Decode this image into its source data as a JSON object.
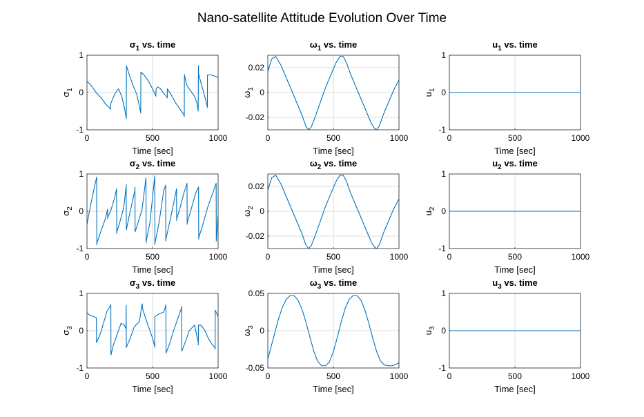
{
  "figure": {
    "suptitle": "Nano-satellite Attitude Evolution Over Time",
    "colors": {
      "line": "#0072BD",
      "grid": "#dcdcdc",
      "axis": "#262626"
    }
  },
  "chart_data": [
    {
      "type": "line",
      "id": "sigma1",
      "title": "σ1 vs. time",
      "title_sym": "σ",
      "title_sub": "1",
      "title_rest": " vs. time",
      "xlabel": "Time [sec]",
      "ylabel_sym": "σ",
      "ylabel_sub": "1",
      "xlim": [
        0,
        1000
      ],
      "ylim": [
        -1,
        1
      ],
      "xticks": [
        0,
        500,
        1000
      ],
      "xticklabels": [
        "0",
        "500",
        "1000"
      ],
      "yticks": [
        -1,
        0,
        1
      ],
      "yticklabels": [
        "-1",
        "0",
        "1"
      ],
      "grid": true,
      "series": [
        {
          "x": [
            0,
            30,
            70,
            110,
            140,
            170,
            180,
            181,
            210,
            240,
            265,
            285,
            298,
            300,
            301,
            320,
            350,
            380,
            408,
            410,
            411,
            440,
            470,
            500,
            520,
            525,
            527,
            540,
            560,
            580,
            600,
            610,
            612,
            613,
            640,
            680,
            720,
            740,
            742,
            743,
            760,
            790,
            820,
            840,
            848,
            850,
            851,
            870,
            890,
            905,
            915,
            918,
            919,
            950,
            980,
            1000
          ],
          "y": [
            0.3,
            0.2,
            0.0,
            -0.15,
            -0.3,
            -0.4,
            -0.45,
            -0.3,
            -0.05,
            0.1,
            -0.1,
            -0.4,
            -0.65,
            -0.7,
            0.72,
            0.5,
            0.2,
            -0.05,
            -0.5,
            -0.55,
            0.55,
            0.45,
            0.3,
            0.1,
            -0.05,
            -0.1,
            0.1,
            0.15,
            0.1,
            0.0,
            -0.08,
            -0.12,
            -0.15,
            0.1,
            -0.05,
            -0.3,
            -0.5,
            -0.6,
            -0.65,
            0.48,
            0.2,
            0.05,
            -0.1,
            -0.3,
            -0.5,
            0.72,
            0.5,
            0.25,
            0.0,
            -0.2,
            -0.35,
            -0.4,
            0.47,
            0.47,
            0.43,
            0.4
          ]
        }
      ]
    },
    {
      "type": "line",
      "id": "omega1",
      "title": "ω1 vs. time",
      "title_sym": "ω",
      "title_sub": "1",
      "title_rest": " vs. time",
      "xlabel": "Time [sec]",
      "ylabel_sym": "ω",
      "ylabel_sub": "1",
      "xlim": [
        0,
        1000
      ],
      "ylim": [
        -0.03,
        0.03
      ],
      "xticks": [
        0,
        500,
        1000
      ],
      "xticklabels": [
        "0",
        "500",
        "1000"
      ],
      "yticks": [
        -0.02,
        0,
        0.02
      ],
      "yticklabels": [
        "-0.02",
        "0",
        "0.02"
      ],
      "grid": true,
      "series": [
        {
          "x": [
            0,
            30,
            60,
            100,
            140,
            180,
            220,
            260,
            290,
            310,
            330,
            360,
            400,
            440,
            480,
            520,
            550,
            575,
            600,
            630,
            670,
            710,
            750,
            790,
            815,
            830,
            850,
            880,
            920,
            960,
            1000
          ],
          "y": [
            0.017,
            0.027,
            0.029,
            0.022,
            0.012,
            0.002,
            -0.008,
            -0.018,
            -0.027,
            -0.03,
            -0.028,
            -0.02,
            -0.008,
            0.004,
            0.014,
            0.024,
            0.029,
            0.029,
            0.024,
            0.015,
            0.005,
            -0.005,
            -0.015,
            -0.025,
            -0.029,
            -0.03,
            -0.027,
            -0.018,
            -0.008,
            0.002,
            0.01
          ]
        }
      ]
    },
    {
      "type": "line",
      "id": "u1",
      "title": "u1 vs. time",
      "title_sym": "u",
      "title_sub": "1",
      "title_rest": " vs. time",
      "xlabel": "Time [sec]",
      "ylabel_sym": "u",
      "ylabel_sub": "1",
      "xlim": [
        0,
        1000
      ],
      "ylim": [
        -1,
        1
      ],
      "xticks": [
        0,
        500,
        1000
      ],
      "xticklabels": [
        "0",
        "500",
        "1000"
      ],
      "yticks": [
        -1,
        0,
        1
      ],
      "yticklabels": [
        "-1",
        "0",
        "1"
      ],
      "grid": true,
      "series": [
        {
          "x": [
            0,
            1000
          ],
          "y": [
            0,
            0
          ]
        }
      ]
    },
    {
      "type": "line",
      "id": "sigma2",
      "title": "σ2 vs. time",
      "title_sym": "σ",
      "title_sub": "2",
      "title_rest": " vs. time",
      "xlabel": "Time [sec]",
      "ylabel_sym": "σ",
      "ylabel_sub": "2",
      "xlim": [
        0,
        1000
      ],
      "ylim": [
        -1,
        1
      ],
      "xticks": [
        0,
        500,
        1000
      ],
      "xticklabels": [
        "0",
        "500",
        "1000"
      ],
      "yticks": [
        -1,
        0,
        1
      ],
      "yticklabels": [
        "-1",
        "0",
        "1"
      ],
      "grid": true,
      "series": [
        {
          "x": [
            0,
            30,
            60,
            74,
            75,
            76,
            100,
            140,
            157,
            158,
            159,
            180,
            210,
            226,
            227,
            228,
            250,
            280,
            298,
            299,
            300,
            330,
            365,
            366,
            367,
            390,
            420,
            450,
            451,
            452,
            480,
            517,
            518,
            519,
            550,
            585,
            600,
            601,
            602,
            630,
            660,
            683,
            684,
            685,
            710,
            740,
            763,
            764,
            765,
            790,
            830,
            851,
            852,
            853,
            880,
            920,
            950,
            985,
            986,
            987,
            1000
          ],
          "y": [
            -0.35,
            0.2,
            0.7,
            0.92,
            -0.9,
            -0.85,
            -0.6,
            -0.2,
            0.05,
            -0.2,
            -0.15,
            0.0,
            0.35,
            0.6,
            -0.6,
            -0.55,
            -0.3,
            0.1,
            0.65,
            0.72,
            -0.5,
            0.0,
            0.55,
            0.65,
            -0.55,
            -0.3,
            0.05,
            0.9,
            -0.85,
            -0.8,
            -0.3,
            0.95,
            -0.9,
            -0.85,
            -0.3,
            0.55,
            0.7,
            -0.8,
            -0.75,
            -0.3,
            0.2,
            0.6,
            -0.25,
            -0.2,
            0.1,
            0.5,
            0.75,
            -0.35,
            -0.3,
            0.0,
            0.5,
            0.65,
            -0.75,
            -0.7,
            -0.4,
            0.1,
            0.4,
            0.75,
            -0.8,
            -0.75,
            -0.1
          ]
        }
      ]
    },
    {
      "type": "line",
      "id": "omega2",
      "title": "ω2 vs. time",
      "title_sym": "ω",
      "title_sub": "2",
      "title_rest": " vs. time",
      "xlabel": "Time [sec]",
      "ylabel_sym": "ω",
      "ylabel_sub": "2",
      "xlim": [
        0,
        1000
      ],
      "ylim": [
        -0.03,
        0.03
      ],
      "xticks": [
        0,
        500,
        1000
      ],
      "xticklabels": [
        "0",
        "500",
        "1000"
      ],
      "yticks": [
        -0.02,
        0,
        0.02
      ],
      "yticklabels": [
        "-0.02",
        "0",
        "0.02"
      ],
      "grid": true,
      "series": [
        {
          "x": [
            0,
            30,
            60,
            100,
            140,
            180,
            220,
            260,
            290,
            310,
            330,
            360,
            400,
            440,
            480,
            520,
            550,
            575,
            600,
            630,
            670,
            710,
            750,
            790,
            815,
            830,
            850,
            880,
            920,
            960,
            1000
          ],
          "y": [
            0.017,
            0.027,
            0.029,
            0.022,
            0.012,
            0.002,
            -0.008,
            -0.018,
            -0.027,
            -0.03,
            -0.028,
            -0.02,
            -0.008,
            0.004,
            0.014,
            0.024,
            0.029,
            0.029,
            0.024,
            0.015,
            0.005,
            -0.005,
            -0.015,
            -0.025,
            -0.029,
            -0.03,
            -0.027,
            -0.018,
            -0.008,
            0.002,
            0.01
          ]
        }
      ]
    },
    {
      "type": "line",
      "id": "u2",
      "title": "u2 vs. time",
      "title_sym": "u",
      "title_sub": "2",
      "title_rest": " vs. time",
      "xlabel": "Time [sec]",
      "ylabel_sym": "u",
      "ylabel_sub": "2",
      "xlim": [
        0,
        1000
      ],
      "ylim": [
        -1,
        1
      ],
      "xticks": [
        0,
        500,
        1000
      ],
      "xticklabels": [
        "0",
        "500",
        "1000"
      ],
      "yticks": [
        -1,
        0,
        1
      ],
      "yticklabels": [
        "-1",
        "0",
        "1"
      ],
      "grid": true,
      "series": [
        {
          "x": [
            0,
            1000
          ],
          "y": [
            0,
            0
          ]
        }
      ]
    },
    {
      "type": "line",
      "id": "sigma3",
      "title": "σ3 vs. time",
      "title_sym": "σ",
      "title_sub": "3",
      "title_rest": " vs. time",
      "xlabel": "Time [sec]",
      "ylabel_sym": "σ",
      "ylabel_sub": "3",
      "xlim": [
        0,
        1000
      ],
      "ylim": [
        -1,
        1
      ],
      "xticks": [
        0,
        500,
        1000
      ],
      "xticklabels": [
        "0",
        "500",
        "1000"
      ],
      "yticks": [
        -1,
        0,
        1
      ],
      "yticklabels": [
        "-1",
        "0",
        "1"
      ],
      "grid": true,
      "series": [
        {
          "x": [
            0,
            20,
            50,
            70,
            72,
            73,
            100,
            130,
            150,
            180,
            182,
            183,
            200,
            230,
            260,
            285,
            298,
            299,
            300,
            330,
            360,
            400,
            420,
            422,
            423,
            450,
            480,
            500,
            515,
            517,
            518,
            550,
            585,
            600,
            602,
            603,
            630,
            660,
            690,
            720,
            722,
            723,
            750,
            780,
            820,
            848,
            849,
            850,
            870,
            900,
            925,
            950,
            975,
            977,
            978,
            1000
          ],
          "y": [
            0.48,
            0.42,
            0.38,
            0.35,
            0.3,
            -0.32,
            -0.1,
            0.25,
            0.5,
            0.68,
            0.7,
            -0.65,
            -0.4,
            -0.1,
            0.2,
            0.15,
            0.05,
            0.68,
            -0.45,
            -0.2,
            0.1,
            0.25,
            0.7,
            0.72,
            0.6,
            0.3,
            0.0,
            -0.2,
            -0.4,
            -0.45,
            0.38,
            0.45,
            0.5,
            0.65,
            0.7,
            -0.6,
            -0.35,
            0.0,
            0.3,
            0.6,
            0.65,
            -0.55,
            -0.3,
            0.0,
            0.15,
            -0.3,
            -0.38,
            0.15,
            0.15,
            0.0,
            -0.2,
            -0.35,
            -0.45,
            -0.5,
            0.55,
            0.38
          ]
        }
      ]
    },
    {
      "type": "line",
      "id": "omega3",
      "title": "ω3 vs. time",
      "title_sym": "ω",
      "title_sub": "3",
      "title_rest": " vs. time",
      "xlabel": "Time [sec]",
      "ylabel_sym": "ω",
      "ylabel_sub": "3",
      "xlim": [
        0,
        1000
      ],
      "ylim": [
        -0.05,
        0.05
      ],
      "xticks": [
        0,
        500,
        1000
      ],
      "xticklabels": [
        "0",
        "500",
        "1000"
      ],
      "yticks": [
        -0.05,
        0,
        0.05
      ],
      "yticklabels": [
        "-0.05",
        "0",
        "0.05"
      ],
      "grid": true,
      "series": [
        {
          "x": [
            0,
            20,
            50,
            80,
            110,
            140,
            170,
            200,
            230,
            260,
            290,
            320,
            350,
            380,
            410,
            440,
            470,
            500,
            530,
            560,
            590,
            620,
            650,
            680,
            710,
            740,
            770,
            800,
            830,
            860,
            890,
            920,
            950,
            980,
            1000
          ],
          "y": [
            -0.038,
            -0.025,
            -0.005,
            0.015,
            0.031,
            0.042,
            0.047,
            0.047,
            0.041,
            0.029,
            0.012,
            -0.008,
            -0.027,
            -0.041,
            -0.047,
            -0.047,
            -0.042,
            -0.028,
            -0.009,
            0.012,
            0.03,
            0.042,
            0.047,
            0.047,
            0.041,
            0.028,
            0.01,
            -0.01,
            -0.028,
            -0.041,
            -0.046,
            -0.047,
            -0.047,
            -0.045,
            -0.043
          ]
        }
      ]
    },
    {
      "type": "line",
      "id": "u3",
      "title": "u3 vs. time",
      "title_sym": "u",
      "title_sub": "3",
      "title_rest": " vs. time",
      "xlabel": "Time [sec]",
      "ylabel_sym": "u",
      "ylabel_sub": "3",
      "xlim": [
        0,
        1000
      ],
      "ylim": [
        -1,
        1
      ],
      "xticks": [
        0,
        500,
        1000
      ],
      "xticklabels": [
        "0",
        "500",
        "1000"
      ],
      "yticks": [
        -1,
        0,
        1
      ],
      "yticklabels": [
        "-1",
        "0",
        "1"
      ],
      "grid": true,
      "series": [
        {
          "x": [
            0,
            1000
          ],
          "y": [
            0,
            0
          ]
        }
      ]
    }
  ]
}
